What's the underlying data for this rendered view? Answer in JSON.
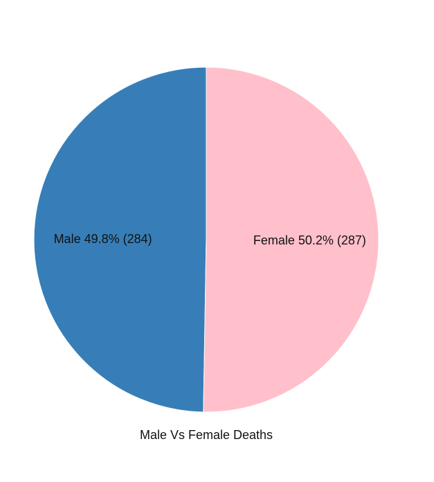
{
  "chart_data": {
    "type": "pie",
    "title": "Male Vs Female Deaths",
    "slices": [
      {
        "name": "Male",
        "value": 284,
        "percent": 49.8,
        "label": "Male 49.8% (284)",
        "color": "#377eb8"
      },
      {
        "name": "Female",
        "value": 287,
        "percent": 50.2,
        "label": "Female 50.2% (287)",
        "color": "#ffc0cb"
      }
    ],
    "legend": "none"
  }
}
